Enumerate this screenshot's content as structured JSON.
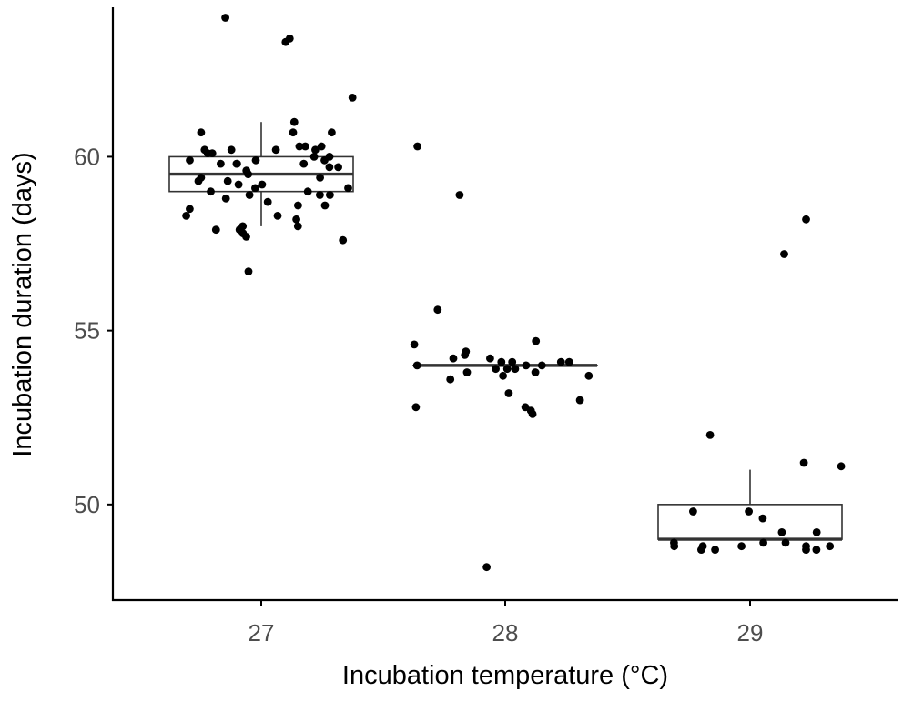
{
  "chart_data": {
    "type": "box",
    "xlabel": "Incubation temperature (°C)",
    "ylabel": "Incubation duration (days)",
    "categories": [
      "27",
      "28",
      "29"
    ],
    "y_ticks": [
      "50",
      "55",
      "60"
    ],
    "ylim": [
      47.25,
      64.3
    ],
    "grid": false,
    "boxes": [
      {
        "category": "27",
        "min": 58,
        "q1": 59,
        "median": 59.5,
        "q3": 60,
        "max": 61
      },
      {
        "category": "28",
        "min": 54,
        "q1": 54,
        "median": 54,
        "q3": 54,
        "max": 54
      },
      {
        "category": "29",
        "min": 49,
        "q1": 49,
        "median": 49,
        "q3": 50,
        "max": 51
      }
    ],
    "points": [
      {
        "category": "27",
        "values": [
          63.4,
          64.0,
          63.3,
          61.7,
          61.0,
          60.7,
          60.7,
          60.7,
          60.3,
          60.3,
          60.3,
          60.2,
          60.2,
          60.2,
          60.2,
          60.1,
          60.1,
          60.0,
          60.0,
          59.9,
          59.9,
          59.9,
          59.8,
          59.8,
          59.8,
          59.8,
          59.7,
          59.7,
          59.6,
          59.5,
          59.4,
          59.4,
          59.3,
          59.3,
          59.2,
          59.2,
          59.1,
          59.1,
          59.0,
          59.0,
          58.9,
          58.9,
          58.9,
          58.8,
          58.7,
          58.6,
          58.6,
          58.5,
          58.3,
          58.3,
          58.2,
          58.0,
          58.0,
          57.9,
          57.9,
          57.8,
          57.7,
          57.6,
          56.7
        ]
      },
      {
        "category": "28",
        "values": [
          60.3,
          58.9,
          55.6,
          54.7,
          54.6,
          54.4,
          54.3,
          54.2,
          54.2,
          54.1,
          54.1,
          54.1,
          54.1,
          54.0,
          54.0,
          54.0,
          53.9,
          53.9,
          53.9,
          53.8,
          53.8,
          53.7,
          53.7,
          53.6,
          53.2,
          53.0,
          52.8,
          52.8,
          52.7,
          52.6,
          48.2
        ]
      },
      {
        "category": "29",
        "values": [
          58.2,
          57.2,
          52.0,
          51.2,
          51.1,
          49.8,
          49.8,
          49.6,
          49.2,
          49.2,
          48.9,
          48.9,
          48.9,
          48.8,
          48.8,
          48.8,
          48.8,
          48.8,
          48.7,
          48.7,
          48.7,
          48.7
        ]
      }
    ]
  }
}
